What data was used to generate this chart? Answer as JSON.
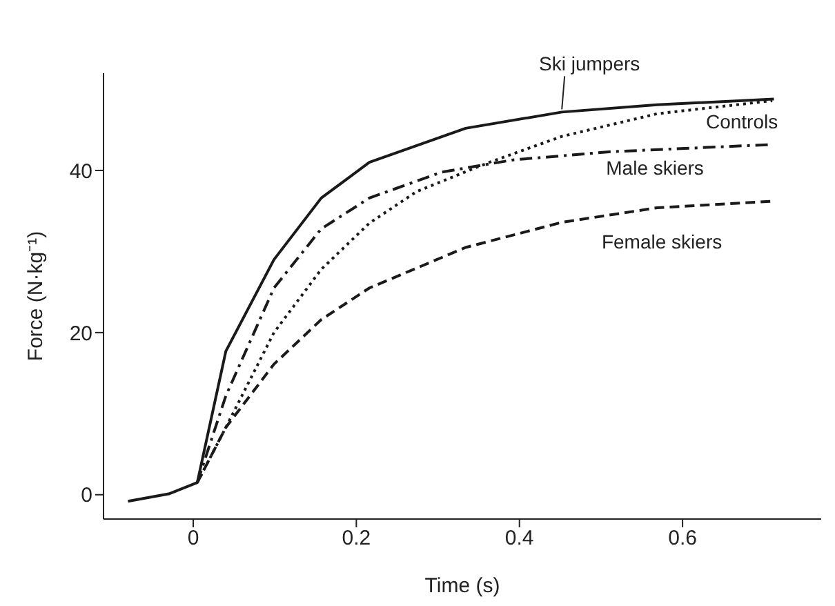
{
  "chart_data": {
    "type": "line",
    "xlabel": "Time (s)",
    "ylabel": "Force (N·kg⁻¹)",
    "xlim": [
      -0.11,
      0.77
    ],
    "ylim": [
      -3,
      52
    ],
    "xticks": [
      0,
      0.2,
      0.4,
      0.6
    ],
    "yticks": [
      0,
      20,
      40
    ],
    "grid": false,
    "legend": false,
    "marker": "none",
    "series": [
      {
        "name": "Ski jumpers",
        "color": "#1a1a1a",
        "line_style": "solid",
        "x": [
          -0.08,
          -0.03,
          0.005,
          0.04,
          0.099,
          0.157,
          0.216,
          0.334,
          0.452,
          0.569,
          0.712
        ],
        "values": [
          -0.8,
          0.1,
          1.5,
          17.7,
          29,
          36.6,
          41,
          45.2,
          47.2,
          48.1,
          48.8
        ]
      },
      {
        "name": "Controls",
        "color": "#1a1a1a",
        "line_style": "dotted",
        "x": [
          0.005,
          0.04,
          0.099,
          0.157,
          0.216,
          0.274,
          0.363,
          0.452,
          0.569,
          0.71
        ],
        "values": [
          1.5,
          8.3,
          20,
          27.8,
          33.5,
          37.4,
          41,
          44.2,
          47,
          48.6
        ]
      },
      {
        "name": "Male skiers",
        "color": "#1a1a1a",
        "line_style": "dashdot",
        "x": [
          0.005,
          0.04,
          0.099,
          0.157,
          0.216,
          0.305,
          0.392,
          0.51,
          0.71
        ],
        "values": [
          1.5,
          12.2,
          25.5,
          32.8,
          36.6,
          39.8,
          41.3,
          42.3,
          43.2
        ]
      },
      {
        "name": "Female skiers",
        "color": "#1a1a1a",
        "line_style": "dashed",
        "x": [
          0.005,
          0.04,
          0.099,
          0.157,
          0.216,
          0.334,
          0.452,
          0.569,
          0.71
        ],
        "values": [
          1.5,
          8.3,
          16.1,
          21.6,
          25.5,
          30.5,
          33.6,
          35.4,
          36.2
        ]
      }
    ]
  }
}
